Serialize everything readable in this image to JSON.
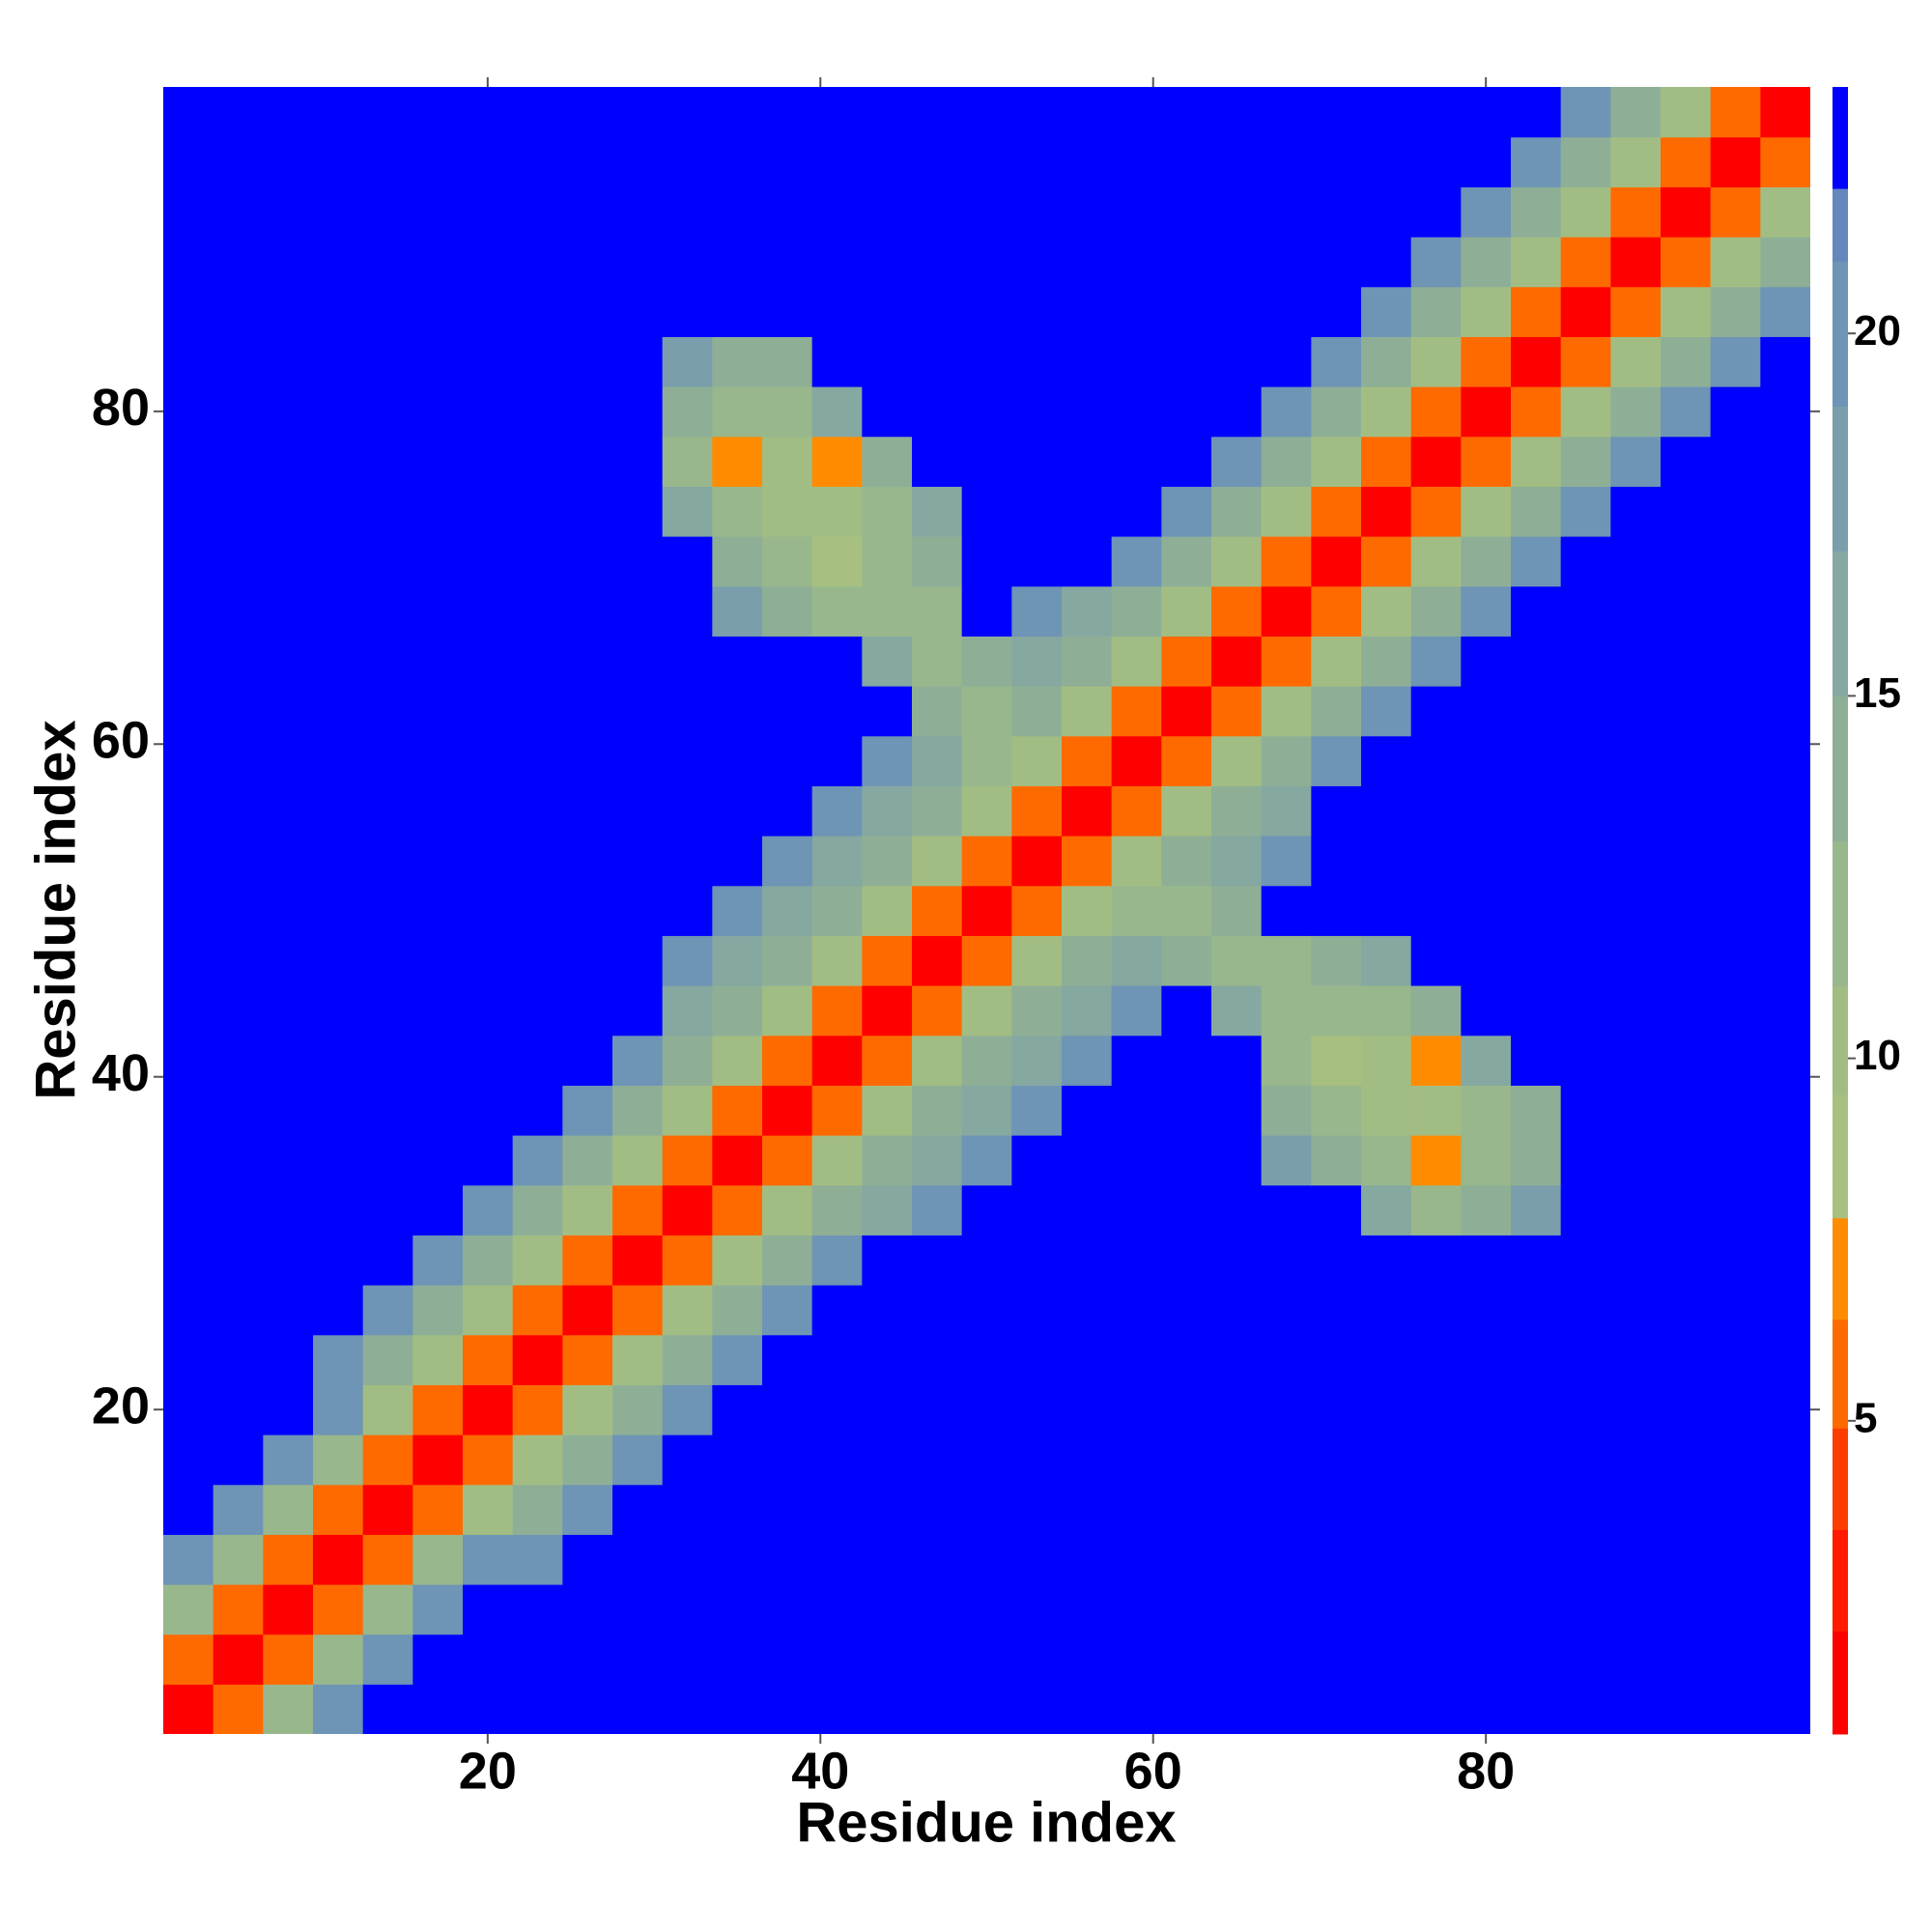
{
  "chart_data": {
    "type": "heatmap",
    "xlabel": "Residue index",
    "ylabel": "Residue index",
    "xlim": [
      0.5,
      99.5
    ],
    "ylim": [
      0.5,
      99.5
    ],
    "xticks": [
      20,
      40,
      60,
      80
    ],
    "yticks": [
      20,
      40,
      60,
      80
    ],
    "x": [
      2,
      5,
      8,
      11,
      14,
      17,
      20,
      23,
      26,
      29,
      32,
      35,
      38,
      41,
      44,
      47,
      50,
      53,
      56,
      59,
      62,
      65,
      68,
      71,
      74,
      77,
      80,
      83,
      86,
      89,
      92,
      95,
      98
    ],
    "y": [
      2,
      5,
      8,
      11,
      14,
      17,
      20,
      23,
      26,
      29,
      32,
      35,
      38,
      41,
      44,
      47,
      50,
      53,
      56,
      59,
      62,
      65,
      68,
      71,
      74,
      77,
      80,
      83,
      86,
      89,
      92,
      95,
      98
    ],
    "z": [
      [
        1,
        6,
        12,
        20,
        23,
        23,
        23,
        23,
        23,
        23,
        23,
        23,
        23,
        23,
        23,
        23,
        23,
        23,
        23,
        23,
        23,
        23,
        23,
        23,
        23,
        23,
        23,
        23,
        23,
        23,
        23,
        23,
        23
      ],
      [
        6,
        1,
        6,
        12,
        20,
        23,
        23,
        23,
        23,
        23,
        23,
        23,
        23,
        23,
        23,
        23,
        23,
        23,
        23,
        23,
        23,
        23,
        23,
        23,
        23,
        23,
        23,
        23,
        23,
        23,
        23,
        23,
        23
      ],
      [
        12,
        6,
        1,
        6,
        12,
        20,
        23,
        23,
        23,
        23,
        23,
        23,
        23,
        23,
        23,
        23,
        23,
        23,
        23,
        23,
        23,
        23,
        23,
        23,
        23,
        23,
        23,
        23,
        23,
        23,
        23,
        23,
        23
      ],
      [
        20,
        12,
        6,
        1,
        6,
        12,
        20,
        20,
        23,
        23,
        23,
        23,
        23,
        23,
        23,
        23,
        23,
        23,
        23,
        23,
        23,
        23,
        23,
        23,
        23,
        23,
        23,
        23,
        23,
        23,
        23,
        23,
        23
      ],
      [
        23,
        20,
        12,
        6,
        1,
        6,
        10,
        15,
        20,
        23,
        23,
        23,
        23,
        23,
        23,
        23,
        23,
        23,
        23,
        23,
        23,
        23,
        23,
        23,
        23,
        23,
        23,
        23,
        23,
        23,
        23,
        23,
        23
      ],
      [
        23,
        23,
        20,
        12,
        6,
        1,
        6,
        10,
        15,
        20,
        23,
        23,
        23,
        23,
        23,
        23,
        23,
        23,
        23,
        23,
        23,
        23,
        23,
        23,
        23,
        23,
        23,
        23,
        23,
        23,
        23,
        23,
        23
      ],
      [
        23,
        23,
        23,
        20,
        10,
        6,
        1,
        6,
        10,
        15,
        20,
        23,
        23,
        23,
        23,
        23,
        23,
        23,
        23,
        23,
        23,
        23,
        23,
        23,
        23,
        23,
        23,
        23,
        23,
        23,
        23,
        23,
        23
      ],
      [
        23,
        23,
        23,
        20,
        15,
        10,
        6,
        1,
        6,
        10,
        15,
        20,
        23,
        23,
        23,
        23,
        23,
        23,
        23,
        23,
        23,
        23,
        23,
        23,
        23,
        23,
        23,
        23,
        23,
        23,
        23,
        23,
        23
      ],
      [
        23,
        23,
        23,
        23,
        20,
        15,
        10,
        6,
        1,
        6,
        10,
        15,
        20,
        23,
        23,
        23,
        23,
        23,
        23,
        23,
        23,
        23,
        23,
        23,
        23,
        23,
        23,
        23,
        23,
        23,
        23,
        23,
        23
      ],
      [
        23,
        23,
        23,
        23,
        23,
        20,
        15,
        10,
        6,
        1,
        6,
        10,
        15,
        20,
        23,
        23,
        23,
        23,
        23,
        23,
        23,
        23,
        23,
        23,
        23,
        23,
        23,
        23,
        23,
        23,
        23,
        23,
        23
      ],
      [
        23,
        23,
        23,
        23,
        23,
        23,
        20,
        15,
        10,
        6,
        1,
        6,
        10,
        15,
        17,
        21,
        23,
        23,
        23,
        23,
        23,
        23,
        23,
        23,
        16,
        13,
        14,
        18,
        23,
        23,
        23,
        23,
        23
      ],
      [
        23,
        23,
        23,
        23,
        23,
        23,
        23,
        20,
        15,
        10,
        6,
        1,
        6,
        10,
        14,
        17,
        21,
        23,
        23,
        23,
        23,
        23,
        18,
        14,
        12,
        7,
        13,
        14,
        23,
        23,
        23,
        23,
        23
      ],
      [
        23,
        23,
        23,
        23,
        23,
        23,
        23,
        23,
        20,
        15,
        10,
        6,
        1,
        6,
        10,
        14,
        17,
        21,
        23,
        23,
        23,
        23,
        15,
        12,
        11,
        11,
        12,
        15,
        23,
        23,
        23,
        23,
        23
      ],
      [
        23,
        23,
        23,
        23,
        23,
        23,
        23,
        23,
        23,
        20,
        15,
        10,
        6,
        1,
        6,
        10,
        14,
        17,
        21,
        23,
        23,
        23,
        12,
        8,
        10,
        7,
        16,
        23,
        23,
        23,
        23,
        23,
        23
      ],
      [
        23,
        23,
        23,
        23,
        23,
        23,
        23,
        23,
        23,
        23,
        17,
        14,
        10,
        6,
        1,
        6,
        10,
        14,
        17,
        21,
        23,
        16,
        13,
        12,
        13,
        14,
        23,
        23,
        23,
        23,
        23,
        23,
        23
      ],
      [
        23,
        23,
        23,
        23,
        23,
        23,
        23,
        23,
        23,
        23,
        21,
        17,
        14,
        10,
        6,
        1,
        6,
        10,
        14,
        17,
        14,
        13,
        13,
        14,
        17,
        23,
        23,
        23,
        23,
        23,
        23,
        23,
        23
      ],
      [
        23,
        23,
        23,
        23,
        23,
        23,
        23,
        23,
        23,
        23,
        23,
        21,
        17,
        14,
        10,
        6,
        1,
        6,
        10,
        12,
        13,
        15,
        23,
        23,
        23,
        23,
        23,
        23,
        23,
        23,
        23,
        23,
        23
      ],
      [
        23,
        23,
        23,
        23,
        23,
        23,
        23,
        23,
        23,
        23,
        23,
        23,
        21,
        17,
        14,
        10,
        6,
        1,
        6,
        10,
        14,
        17,
        21,
        23,
        23,
        23,
        23,
        23,
        23,
        23,
        23,
        23,
        23
      ],
      [
        23,
        23,
        23,
        23,
        23,
        23,
        23,
        23,
        23,
        23,
        23,
        23,
        23,
        21,
        17,
        14,
        10,
        6,
        1,
        6,
        10,
        14,
        17,
        23,
        23,
        23,
        23,
        23,
        23,
        23,
        23,
        23,
        23
      ],
      [
        23,
        23,
        23,
        23,
        23,
        23,
        23,
        23,
        23,
        23,
        23,
        23,
        23,
        23,
        21,
        17,
        12,
        10,
        6,
        1,
        6,
        10,
        15,
        20,
        23,
        23,
        23,
        23,
        23,
        23,
        23,
        23,
        23
      ],
      [
        23,
        23,
        23,
        23,
        23,
        23,
        23,
        23,
        23,
        23,
        23,
        23,
        23,
        23,
        23,
        14,
        13,
        14,
        10,
        6,
        1,
        6,
        10,
        15,
        20,
        23,
        23,
        23,
        23,
        23,
        23,
        23,
        23
      ],
      [
        23,
        23,
        23,
        23,
        23,
        23,
        23,
        23,
        23,
        23,
        23,
        23,
        23,
        23,
        16,
        13,
        15,
        17,
        14,
        10,
        6,
        1,
        6,
        10,
        15,
        20,
        23,
        23,
        23,
        23,
        23,
        23,
        23
      ],
      [
        23,
        23,
        23,
        23,
        23,
        23,
        23,
        23,
        23,
        23,
        23,
        18,
        15,
        12,
        13,
        13,
        23,
        21,
        17,
        15,
        10,
        6,
        1,
        6,
        10,
        15,
        20,
        23,
        23,
        23,
        23,
        23,
        23
      ],
      [
        23,
        23,
        23,
        23,
        23,
        23,
        23,
        23,
        23,
        23,
        23,
        14,
        12,
        8,
        12,
        14,
        23,
        23,
        23,
        20,
        15,
        10,
        6,
        1,
        6,
        10,
        15,
        20,
        23,
        23,
        23,
        23,
        23
      ],
      [
        23,
        23,
        23,
        23,
        23,
        23,
        23,
        23,
        23,
        23,
        16,
        12,
        11,
        10,
        13,
        17,
        23,
        23,
        23,
        23,
        20,
        15,
        10,
        6,
        1,
        6,
        10,
        15,
        20,
        23,
        23,
        23,
        23
      ],
      [
        23,
        23,
        23,
        23,
        23,
        23,
        23,
        23,
        23,
        23,
        13,
        7,
        11,
        7,
        14,
        23,
        23,
        23,
        23,
        23,
        23,
        20,
        15,
        10,
        6,
        1,
        6,
        10,
        15,
        20,
        23,
        23,
        23
      ],
      [
        23,
        23,
        23,
        23,
        23,
        23,
        23,
        23,
        23,
        23,
        14,
        13,
        12,
        16,
        23,
        23,
        23,
        23,
        23,
        23,
        23,
        23,
        20,
        15,
        10,
        6,
        1,
        6,
        10,
        15,
        20,
        23,
        23
      ],
      [
        23,
        23,
        23,
        23,
        23,
        23,
        23,
        23,
        23,
        23,
        18,
        14,
        15,
        23,
        23,
        23,
        23,
        23,
        23,
        23,
        23,
        23,
        23,
        20,
        15,
        10,
        6,
        1,
        6,
        10,
        15,
        20,
        23
      ],
      [
        23,
        23,
        23,
        23,
        23,
        23,
        23,
        23,
        23,
        23,
        23,
        23,
        23,
        23,
        23,
        23,
        23,
        23,
        23,
        23,
        23,
        23,
        23,
        23,
        20,
        15,
        10,
        6,
        1,
        6,
        10,
        15,
        20
      ],
      [
        23,
        23,
        23,
        23,
        23,
        23,
        23,
        23,
        23,
        23,
        23,
        23,
        23,
        23,
        23,
        23,
        23,
        23,
        23,
        23,
        23,
        23,
        23,
        23,
        23,
        20,
        15,
        10,
        6,
        1,
        6,
        10,
        15
      ],
      [
        23,
        23,
        23,
        23,
        23,
        23,
        23,
        23,
        23,
        23,
        23,
        23,
        23,
        23,
        23,
        23,
        23,
        23,
        23,
        23,
        23,
        23,
        23,
        23,
        23,
        23,
        20,
        15,
        10,
        6,
        1,
        6,
        10
      ],
      [
        23,
        23,
        23,
        23,
        23,
        23,
        23,
        23,
        23,
        23,
        23,
        23,
        23,
        23,
        23,
        23,
        23,
        23,
        23,
        23,
        23,
        23,
        23,
        23,
        23,
        23,
        23,
        20,
        15,
        10,
        6,
        1,
        6
      ],
      [
        23,
        23,
        23,
        23,
        23,
        23,
        23,
        23,
        23,
        23,
        23,
        23,
        23,
        23,
        23,
        23,
        23,
        23,
        23,
        23,
        23,
        23,
        23,
        23,
        23,
        23,
        23,
        23,
        20,
        15,
        10,
        6,
        1
      ]
    ],
    "zlim": [
      0.68,
      23.4
    ],
    "cticks": [
      5,
      10,
      15,
      20
    ],
    "colormap": [
      {
        "upto": 2.1,
        "color": "#ff0000"
      },
      {
        "upto": 3.5,
        "color": "#ff1a00"
      },
      {
        "upto": 4.9,
        "color": "#ff3c00"
      },
      {
        "upto": 6.4,
        "color": "#ff6a00"
      },
      {
        "upto": 7.8,
        "color": "#ff8c00"
      },
      {
        "upto": 9.5,
        "color": "#a8c07f"
      },
      {
        "upto": 11,
        "color": "#a2bd84"
      },
      {
        "upto": 13,
        "color": "#98b78d"
      },
      {
        "upto": 15,
        "color": "#8eaf96"
      },
      {
        "upto": 17,
        "color": "#85a8a0"
      },
      {
        "upto": 19,
        "color": "#7a9eab"
      },
      {
        "upto": 21,
        "color": "#6e94b6"
      },
      {
        "upto": 22,
        "color": "#6488bd"
      },
      {
        "upto": 23.4,
        "color": "#0000ff"
      }
    ]
  }
}
